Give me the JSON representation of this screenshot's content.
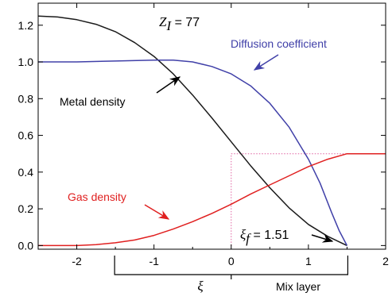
{
  "chart_data": {
    "type": "line",
    "xlim": [
      -2.5,
      2
    ],
    "ylim": [
      -0.02,
      1.32
    ],
    "x_ticks": [
      "-2",
      "-1",
      "0",
      "1",
      "2"
    ],
    "y_ticks": [
      "0.0",
      "0.2",
      "0.4",
      "0.6",
      "0.8",
      "1.0",
      "1.2"
    ],
    "x_tick_values": [
      -2,
      -1,
      0,
      1,
      2
    ],
    "y_tick_values": [
      0,
      0.2,
      0.4,
      0.6,
      0.8,
      1.0,
      1.2
    ],
    "xlabel": "ξ",
    "mix_layer_label": "Mix layer",
    "mix_layer_range": [
      -1.51,
      1.51
    ],
    "series": [
      {
        "name": "Metal density",
        "color": "#1a1a1a",
        "x": [
          -2.5,
          -2.25,
          -2.0,
          -1.75,
          -1.5,
          -1.25,
          -1.0,
          -0.75,
          -0.5,
          -0.25,
          0.0,
          0.25,
          0.5,
          0.75,
          1.0,
          1.25,
          1.5
        ],
        "y": [
          1.25,
          1.245,
          1.23,
          1.205,
          1.165,
          1.105,
          1.03,
          0.935,
          0.82,
          0.695,
          0.565,
          0.435,
          0.315,
          0.205,
          0.115,
          0.05,
          0.0
        ]
      },
      {
        "name": "Diffusion coefficient",
        "color": "#4040a8",
        "x": [
          -2.5,
          -2.0,
          -1.5,
          -1.0,
          -0.75,
          -0.5,
          -0.25,
          0.0,
          0.25,
          0.5,
          0.75,
          1.0,
          1.15,
          1.3,
          1.4,
          1.5
        ],
        "y": [
          1.0,
          1.0,
          1.005,
          1.01,
          1.01,
          1.0,
          0.975,
          0.935,
          0.87,
          0.775,
          0.645,
          0.47,
          0.34,
          0.18,
          0.08,
          0.0
        ]
      },
      {
        "name": "Gas density",
        "color": "#e02020",
        "x": [
          -2.5,
          -2.0,
          -1.75,
          -1.5,
          -1.25,
          -1.0,
          -0.75,
          -0.5,
          -0.25,
          0.0,
          0.25,
          0.5,
          0.75,
          1.0,
          1.25,
          1.5,
          2.0
        ],
        "y": [
          0.0,
          0.0,
          0.005,
          0.015,
          0.03,
          0.055,
          0.09,
          0.13,
          0.175,
          0.225,
          0.28,
          0.33,
          0.38,
          0.43,
          0.47,
          0.5,
          0.5
        ]
      }
    ],
    "reference_box": {
      "x": [
        0,
        1.51
      ],
      "y": [
        0,
        0.5
      ],
      "color": "#e060a0"
    },
    "annotations": {
      "zi_symbol": "Z",
      "zi_subscript": "I",
      "zi_value": " = 77",
      "diffusion_label": "Diffusion coefficient",
      "metal_label": "Metal density",
      "gas_label": "Gas density",
      "xif_symbol": "ξ",
      "xif_subscript": "f",
      "xif_value": " = 1.51"
    },
    "grid": false
  }
}
